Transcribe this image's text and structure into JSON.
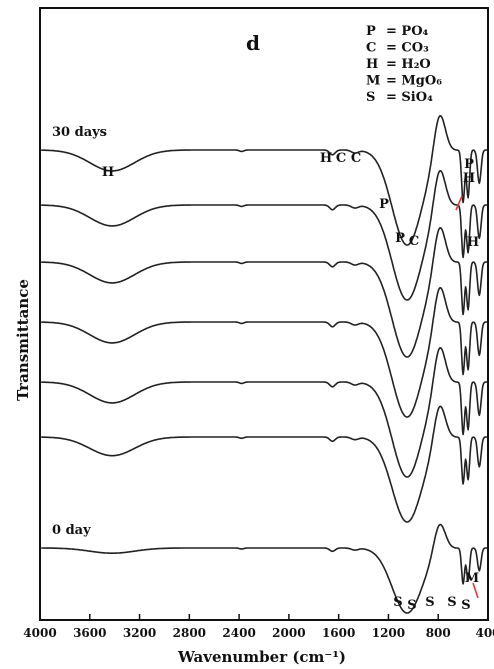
{
  "chart_data": {
    "type": "line",
    "panel_label": "d",
    "xlabel": "Wavenumber (cm⁻¹)",
    "ylabel": "Transmittance",
    "xlim": [
      4000,
      400
    ],
    "x_reversed": true,
    "x_ticks": [
      4000,
      3600,
      3200,
      2800,
      2400,
      2000,
      1600,
      1200,
      800,
      400
    ],
    "grid": false,
    "legend_position": "top-right",
    "legend": [
      {
        "key": "P",
        "desc": "= PO₄"
      },
      {
        "key": "C",
        "desc": "= CO₃"
      },
      {
        "key": "H",
        "desc": "= H₂O"
      },
      {
        "key": "M",
        "desc": "= MgO₆"
      },
      {
        "key": "S",
        "desc": "= SiO₄"
      }
    ],
    "series": [
      {
        "name": "30 days",
        "offset": 6
      },
      {
        "name": "",
        "offset": 5
      },
      {
        "name": "",
        "offset": 4
      },
      {
        "name": "",
        "offset": 3
      },
      {
        "name": "",
        "offset": 2
      },
      {
        "name": "",
        "offset": 1
      },
      {
        "name": "0 day",
        "offset": 0
      }
    ],
    "band_annotations": [
      {
        "text": "H",
        "series": 0,
        "x": 3400
      },
      {
        "text": "H",
        "series": 0,
        "x": 1660
      },
      {
        "text": "C",
        "series": 0,
        "x": 1560
      },
      {
        "text": "C",
        "series": 0,
        "x": 1470
      },
      {
        "text": "P",
        "series": 1,
        "x": 1140
      },
      {
        "text": "P",
        "series": 1,
        "x": 1050
      },
      {
        "text": "C",
        "series": 1,
        "x": 1000
      },
      {
        "text": "P",
        "series": 0,
        "x": 470
      },
      {
        "text": "H",
        "series": 0,
        "x": 470
      },
      {
        "text": "H",
        "series": 1,
        "x": 440
      },
      {
        "text": "S",
        "series": 6,
        "x": 1085
      },
      {
        "text": "S",
        "series": 6,
        "x": 1030
      },
      {
        "text": "S",
        "series": 6,
        "x": 950
      },
      {
        "text": "S",
        "series": 6,
        "x": 610
      },
      {
        "text": "S",
        "series": 6,
        "x": 560
      },
      {
        "text": "M",
        "series": 6,
        "x": 430
      }
    ]
  }
}
